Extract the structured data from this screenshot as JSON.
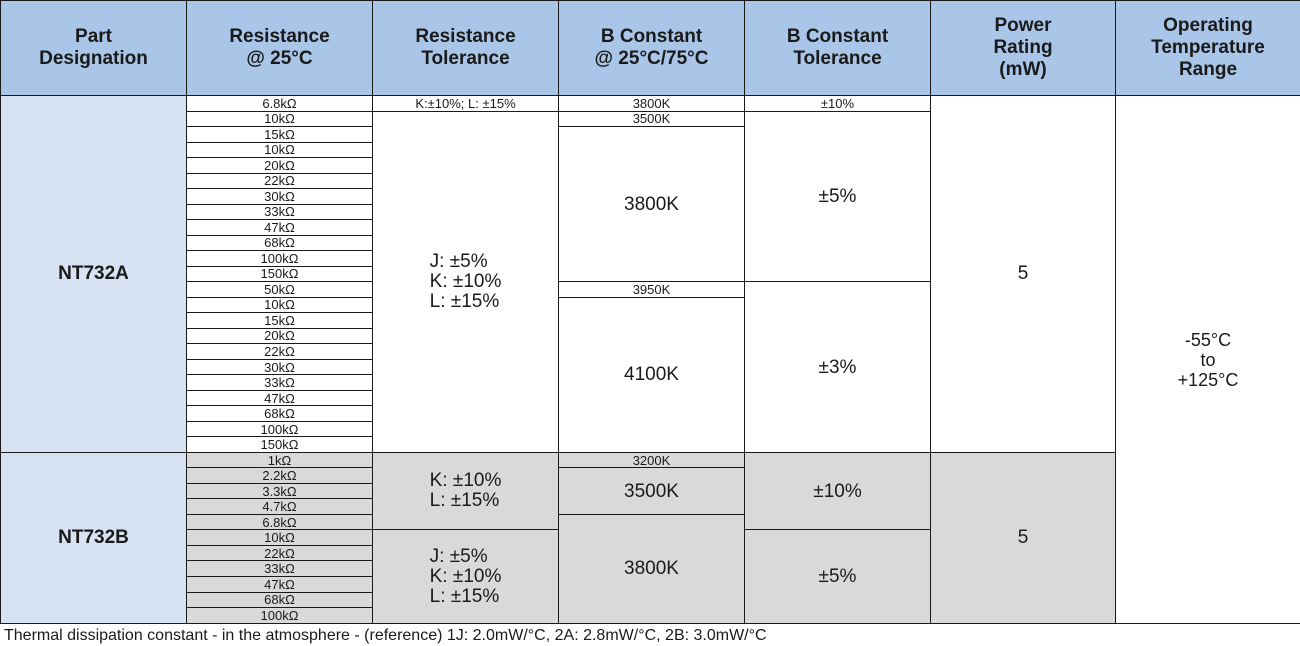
{
  "headers": {
    "part": "Part\nDesignation",
    "resistance": "Resistance\n@ 25°C",
    "res_tolerance": "Resistance\nTolerance",
    "b_constant": "B Constant\n@ 25°C/75°C",
    "b_tolerance": "B Constant\nTolerance",
    "power": "Power\nRating\n(mW)",
    "temp": "Operating\nTemperature\nRange"
  },
  "nt732a": {
    "part": "NT732A",
    "resistances": [
      "6.8kΩ",
      "10kΩ",
      "15kΩ",
      "10kΩ",
      "20kΩ",
      "22kΩ",
      "30kΩ",
      "33kΩ",
      "47kΩ",
      "68kΩ",
      "100kΩ",
      "150kΩ",
      "50kΩ",
      "10kΩ",
      "15kΩ",
      "20kΩ",
      "22kΩ",
      "30kΩ",
      "33kΩ",
      "47kΩ",
      "68kΩ",
      "100kΩ",
      "150kΩ"
    ],
    "res_tol_first": "K:±10%;  L: ±15%",
    "res_tol_group": [
      "J:  ±5%",
      "K:  ±10%",
      "L:  ±15%"
    ],
    "b_values": [
      "3800K",
      "3500K",
      "3800K",
      "3950K",
      "4100K"
    ],
    "b_tol": [
      "±10%",
      "±5%",
      "±3%"
    ],
    "power": "5"
  },
  "nt732b": {
    "part": "NT732B",
    "resistances": [
      "1kΩ",
      "2.2kΩ",
      "3.3kΩ",
      "4.7kΩ",
      "6.8kΩ",
      "10kΩ",
      "22kΩ",
      "33kΩ",
      "47kΩ",
      "68kΩ",
      "100kΩ"
    ],
    "res_tol_group1": [
      "K:  ±10%",
      "L:  ±15%"
    ],
    "res_tol_group2": [
      "J:  ±5%",
      "K:  ±10%",
      "L:  ±15%"
    ],
    "b_values": [
      "3200K",
      "3500K",
      "3800K"
    ],
    "b_tol": [
      "±10%",
      "±5%"
    ],
    "power": "5"
  },
  "temp_range": [
    "-55°C",
    "to",
    "+125°C"
  ],
  "footnote": "Thermal dissipation constant - in the atmosphere - (reference) 1J: 2.0mW/°C, 2A: 2.8mW/°C, 2B: 3.0mW/°C",
  "colors": {
    "header": "#a9c6e8",
    "part_cell": "#d7e3f3",
    "gray_band": "#d9d9d9"
  }
}
